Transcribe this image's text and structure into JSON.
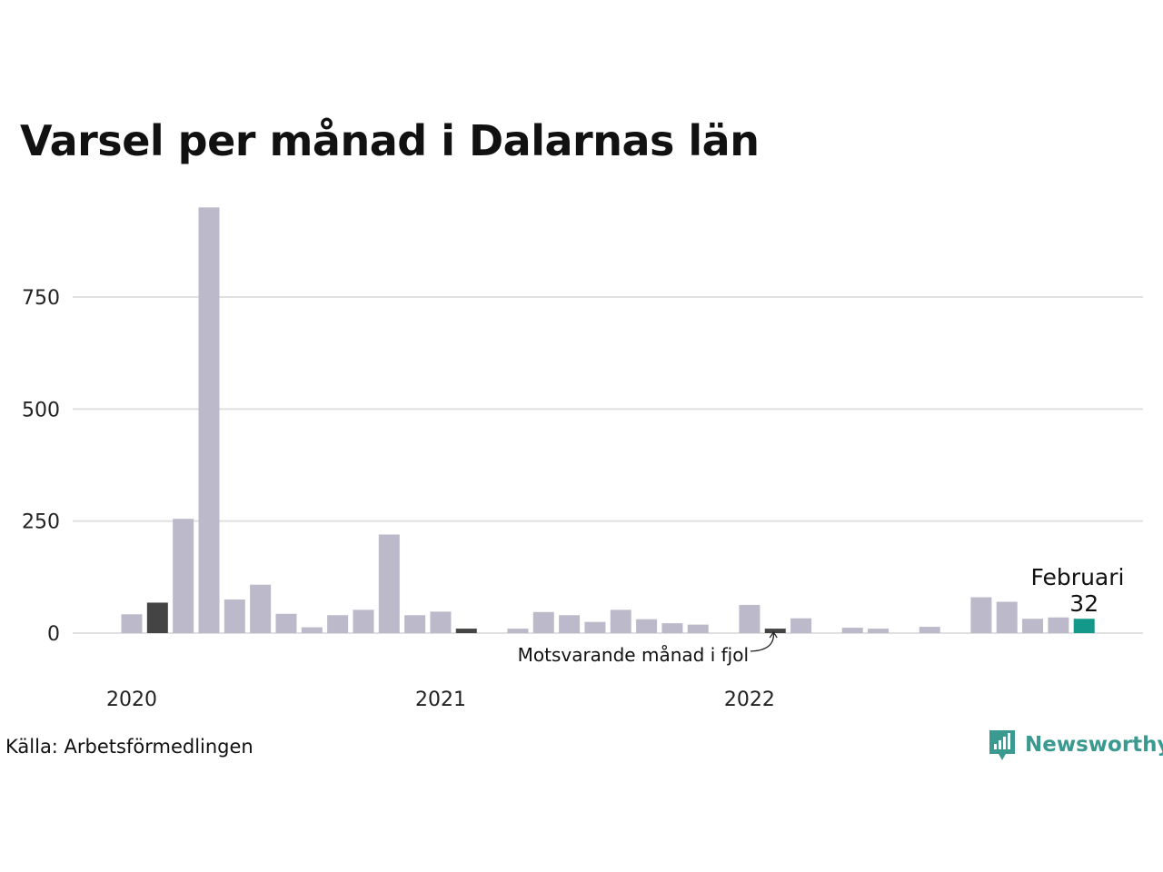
{
  "title": "Varsel per månad i Dalarnas län",
  "source": "Källa: Arbetsförmedlingen",
  "brand": "Newsworthy",
  "colors": {
    "bar": "#bcbaca",
    "prev_year": "#444444",
    "current": "#13988a",
    "grid": "#e0e0e0",
    "brand": "#3a9a8f"
  },
  "annotations": {
    "current_month": "Februari",
    "current_value": "32",
    "previous_year_note": "Motsvarande månad i fjol"
  },
  "chart_data": {
    "type": "bar",
    "title": "Varsel per månad i Dalarnas län",
    "xlabel": "",
    "ylabel": "",
    "ylim": [
      0,
      950
    ],
    "yticks": [
      0,
      250,
      500,
      750
    ],
    "grid": true,
    "x_tick_labels": [
      {
        "label": "2020",
        "index": 0
      },
      {
        "label": "2021",
        "index": 12
      },
      {
        "label": "2022",
        "index": 24
      }
    ],
    "categories": [
      "2020-01",
      "2020-02",
      "2020-03",
      "2020-04",
      "2020-05",
      "2020-06",
      "2020-07",
      "2020-08",
      "2020-09",
      "2020-10",
      "2020-11",
      "2020-12",
      "2021-01",
      "2021-02",
      "2021-03",
      "2021-04",
      "2021-05",
      "2021-06",
      "2021-07",
      "2021-08",
      "2021-09",
      "2021-10",
      "2021-11",
      "2021-12",
      "2022-01",
      "2022-02",
      "2022-03",
      "2022-04",
      "2022-05",
      "2022-06",
      "2022-07",
      "2022-08",
      "2022-09",
      "2022-10",
      "2022-11",
      "2022-12",
      "2023-01",
      "2023-02"
    ],
    "values": [
      42,
      68,
      255,
      950,
      75,
      108,
      43,
      13,
      40,
      52,
      220,
      40,
      48,
      10,
      0,
      10,
      47,
      40,
      25,
      52,
      31,
      22,
      19,
      0,
      63,
      10,
      33,
      0,
      12,
      10,
      0,
      14,
      0,
      80,
      70,
      32,
      35,
      32
    ],
    "highlight_prev_year": [
      1,
      13,
      25
    ],
    "highlight_current": 37
  }
}
